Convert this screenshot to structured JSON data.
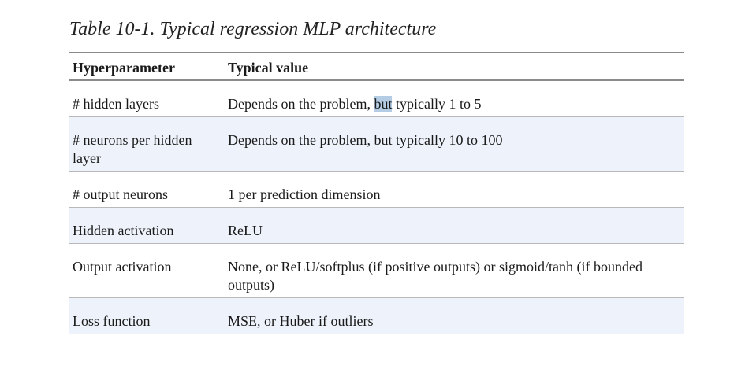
{
  "caption": "Table 10-1. Typical regression MLP architecture",
  "table": {
    "headers": [
      "Hyperparameter",
      "Typical value"
    ],
    "rows": [
      {
        "param": "# hidden layers",
        "value_pre": "Depends on the problem, ",
        "value_highlight": "but",
        "value_post": " typically 1 to 5"
      },
      {
        "param": "# neurons per hidden layer",
        "value": "Depends on the problem, but typically 10 to 100"
      },
      {
        "param": "# output neurons",
        "value": "1 per prediction dimension"
      },
      {
        "param": "Hidden activation",
        "value": "ReLU"
      },
      {
        "param": "Output activation",
        "value": "None, or ReLU/softplus (if positive outputs) or sigmoid/tanh (if bounded outputs)"
      },
      {
        "param": "Loss function",
        "value": "MSE, or Huber if outliers"
      }
    ]
  }
}
